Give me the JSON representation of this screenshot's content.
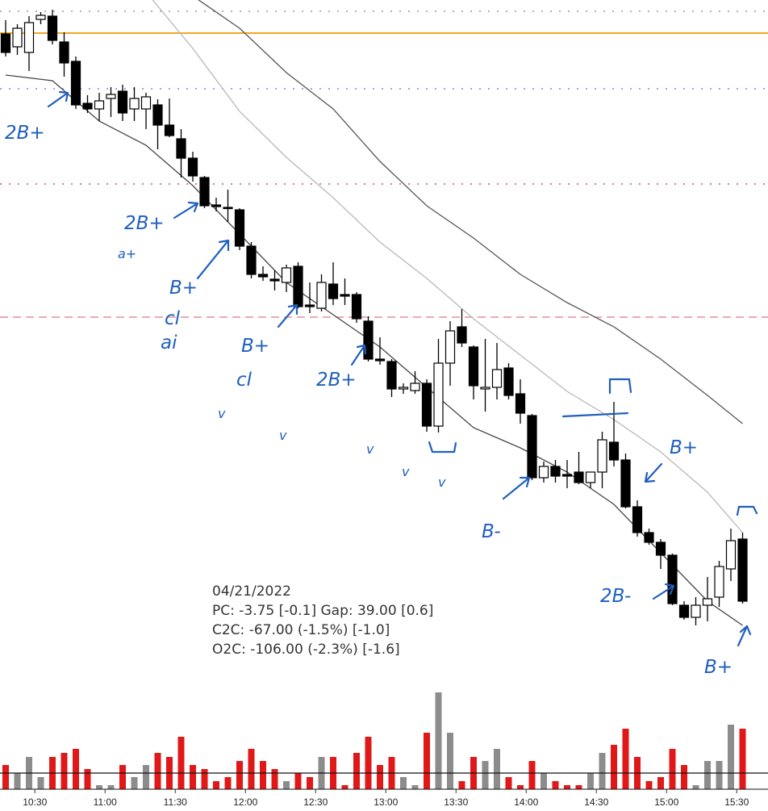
{
  "chart_data": {
    "type": "candlestick",
    "ylim": [
      0,
      800
    ],
    "xlim": [
      0,
      64
    ],
    "xticks": [
      {
        "value": 2.5,
        "label": "10:30"
      },
      {
        "value": 8.5,
        "label": "11:00"
      },
      {
        "value": 14.5,
        "label": "11:30"
      },
      {
        "value": 20.5,
        "label": "12:00"
      },
      {
        "value": 26.5,
        "label": "12:30"
      },
      {
        "value": 32.5,
        "label": "13:00"
      },
      {
        "value": 38.5,
        "label": "13:30"
      },
      {
        "value": 44.5,
        "label": "14:00"
      },
      {
        "value": 50.5,
        "label": "14:30"
      },
      {
        "value": 56.5,
        "label": "15:00"
      },
      {
        "value": 62.5,
        "label": "15:30"
      }
    ],
    "open": [
      758,
      742,
      735,
      776,
      780,
      748,
      724,
      672,
      665,
      678,
      687,
      665,
      665,
      670,
      645,
      628,
      604,
      580,
      546,
      543,
      540,
      495,
      460,
      454,
      450,
      470,
      422,
      418,
      448,
      435,
      435,
      402,
      355,
      352,
      318,
      316,
      325,
      272,
      350,
      395,
      370,
      318,
      320,
      344,
      312,
      285,
      208,
      222,
      212,
      215,
      202,
      215,
      252,
      230,
      172,
      140,
      128,
      112,
      50,
      35,
      50,
      60,
      95,
      132
    ],
    "high": [
      775,
      770,
      780,
      785,
      788,
      760,
      730,
      682,
      685,
      692,
      695,
      692,
      685,
      677,
      678,
      640,
      612,
      582,
      555,
      565,
      542,
      500,
      470,
      465,
      472,
      475,
      450,
      460,
      475,
      455,
      438,
      408,
      382,
      355,
      325,
      340,
      330,
      380,
      402,
      417,
      372,
      380,
      375,
      350,
      330,
      287,
      228,
      230,
      230,
      240,
      215,
      265,
      302,
      238,
      180,
      145,
      132,
      114,
      55,
      60,
      85,
      105,
      145,
      140
    ],
    "low": [
      730,
      732,
      712,
      770,
      745,
      705,
      665,
      660,
      650,
      655,
      650,
      650,
      640,
      615,
      630,
      580,
      575,
      542,
      538,
      525,
      490,
      455,
      452,
      440,
      438,
      418,
      412,
      414,
      422,
      422,
      400,
      352,
      348,
      308,
      312,
      312,
      265,
      264,
      322,
      370,
      305,
      290,
      305,
      305,
      275,
      205,
      202,
      202,
      195,
      200,
      195,
      195,
      222,
      170,
      135,
      125,
      95,
      50,
      32,
      25,
      30,
      48,
      80,
      52
    ],
    "close": [
      735,
      765,
      772,
      781,
      750,
      722,
      670,
      665,
      675,
      683,
      660,
      678,
      680,
      645,
      632,
      604,
      582,
      545,
      544,
      542,
      495,
      460,
      457,
      452,
      468,
      420,
      420,
      450,
      430,
      433,
      405,
      355,
      353,
      318,
      320,
      325,
      272,
      350,
      390,
      375,
      322,
      320,
      342,
      310,
      288,
      208,
      222,
      210,
      210,
      202,
      215,
      255,
      230,
      172,
      140,
      128,
      112,
      52,
      35,
      50,
      58,
      98,
      130,
      55
    ],
    "up_color": "#ffffff",
    "down_color": "#000000",
    "lines": [
      {
        "color": "#555555",
        "x": [
          16,
          20,
          24,
          28,
          32,
          36,
          40,
          44,
          48,
          52,
          56,
          60,
          63
        ],
        "values": [
          805,
          765,
          710,
          665,
          600,
          545,
          505,
          460,
          425,
          395,
          355,
          310,
          275
        ]
      },
      {
        "color": "#b8b8b8",
        "x": [
          12,
          16,
          20,
          24,
          28,
          32,
          36,
          40,
          44,
          48,
          52,
          56,
          60,
          63
        ],
        "values": [
          810,
          740,
          662,
          605,
          555,
          500,
          455,
          405,
          360,
          315,
          280,
          240,
          190,
          140
        ]
      },
      {
        "color": "#444444",
        "x": [
          0,
          4,
          8,
          12,
          16,
          20,
          24,
          28,
          32,
          36,
          40,
          44,
          48,
          52,
          56,
          60,
          63
        ],
        "values": [
          707,
          700,
          650,
          620,
          570,
          510,
          450,
          410,
          370,
          320,
          270,
          245,
          215,
          175,
          115,
          55,
          25
        ]
      }
    ],
    "levels": [
      {
        "value": 786,
        "color": "#999999",
        "style": "dotted"
      },
      {
        "value": 759,
        "color": "#f5a623",
        "style": "solid"
      },
      {
        "value": 690,
        "color": "#8a7fd0",
        "style": "dotted"
      },
      {
        "value": 572,
        "color": "#d05060",
        "style": "dotted"
      },
      {
        "value": 407,
        "color": "#e0909a",
        "style": "dashed"
      }
    ],
    "volume": [
      30,
      20,
      40,
      15,
      40,
      45,
      50,
      25,
      5,
      5,
      30,
      15,
      30,
      45,
      40,
      65,
      30,
      25,
      10,
      15,
      35,
      50,
      35,
      25,
      10,
      20,
      15,
      40,
      40,
      5,
      45,
      65,
      30,
      40,
      15,
      5,
      70,
      120,
      70,
      10,
      40,
      35,
      50,
      15,
      5,
      35,
      20,
      10,
      5,
      5,
      20,
      45,
      55,
      75,
      40,
      10,
      15,
      50,
      30,
      5,
      35,
      35,
      80,
      75
    ],
    "volume_ylim": [
      0,
      130
    ],
    "volume_average": 20,
    "volume_up_color": "#8c8c8c",
    "volume_down_color": "#e01818",
    "info_lines": [
      "04/21/2022",
      "PC: -3.75 [-0.1] Gap: 39.00 [0.6]",
      "C2C: -67.00 (-1.5%) [-1.0]",
      "O2C: -106.00 (-2.3%) [-1.6]"
    ],
    "annotations": [
      "2B+",
      "2B+",
      "a+",
      "B+",
      "cl",
      "ai",
      "B+",
      "cl",
      "2B+",
      "B+",
      "B-",
      "2B-",
      "B+",
      "v",
      "v",
      "v",
      "v",
      "v"
    ]
  }
}
